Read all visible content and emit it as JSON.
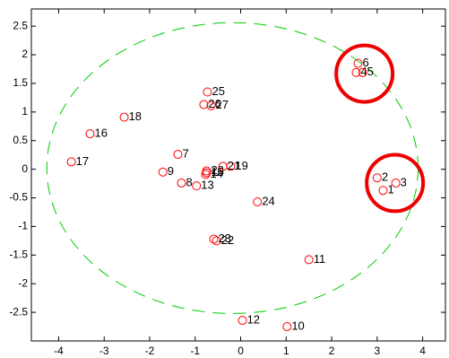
{
  "chart_data": {
    "type": "scatter",
    "labels": [
      "1",
      "2",
      "3",
      "4",
      "5",
      "6",
      "7",
      "8",
      "9",
      "10",
      "11",
      "12",
      "13",
      "14",
      "15",
      "16",
      "17",
      "18",
      "19",
      "20",
      "21",
      "22",
      "23",
      "24",
      "25",
      "26",
      "27"
    ],
    "x": [
      3.13,
      3.0,
      3.41,
      2.54,
      2.68,
      2.58,
      -1.38,
      -1.3,
      -1.71,
      1.02,
      1.5,
      0.04,
      -0.97,
      -0.77,
      -0.75,
      -3.31,
      -3.72,
      -2.56,
      -0.22,
      -0.75,
      -0.39,
      -0.53,
      -0.59,
      0.37,
      -0.73,
      -0.81,
      -0.65
    ],
    "values": [
      -0.37,
      -0.15,
      -0.24,
      1.69,
      1.69,
      1.85,
      0.26,
      -0.24,
      -0.05,
      -2.75,
      -1.58,
      -2.64,
      -0.29,
      -0.09,
      -0.06,
      0.62,
      0.13,
      0.91,
      0.05,
      -0.03,
      0.05,
      -1.25,
      -1.22,
      -0.57,
      1.35,
      1.13,
      1.11
    ],
    "color": "#ff0000",
    "xlim": [
      -4.6,
      4.5
    ],
    "xticks": [
      -4,
      -3,
      -2,
      -1,
      0,
      1,
      2,
      3,
      4
    ],
    "ylim": [
      -3,
      2.8
    ],
    "yticks": [
      -2.5,
      -2,
      -1.5,
      -1,
      -0.5,
      0,
      0.5,
      1,
      1.5,
      2,
      2.5
    ],
    "ellipse": {
      "center": [
        -0.18,
        0.02
      ],
      "radii": [
        4.08,
        2.54
      ],
      "color": "#00cc00"
    },
    "highlights": {
      "color": "#ee0000",
      "radius": 0.62,
      "centers": [
        [
          2.72,
          1.67
        ],
        [
          3.39,
          -0.24
        ]
      ]
    }
  }
}
